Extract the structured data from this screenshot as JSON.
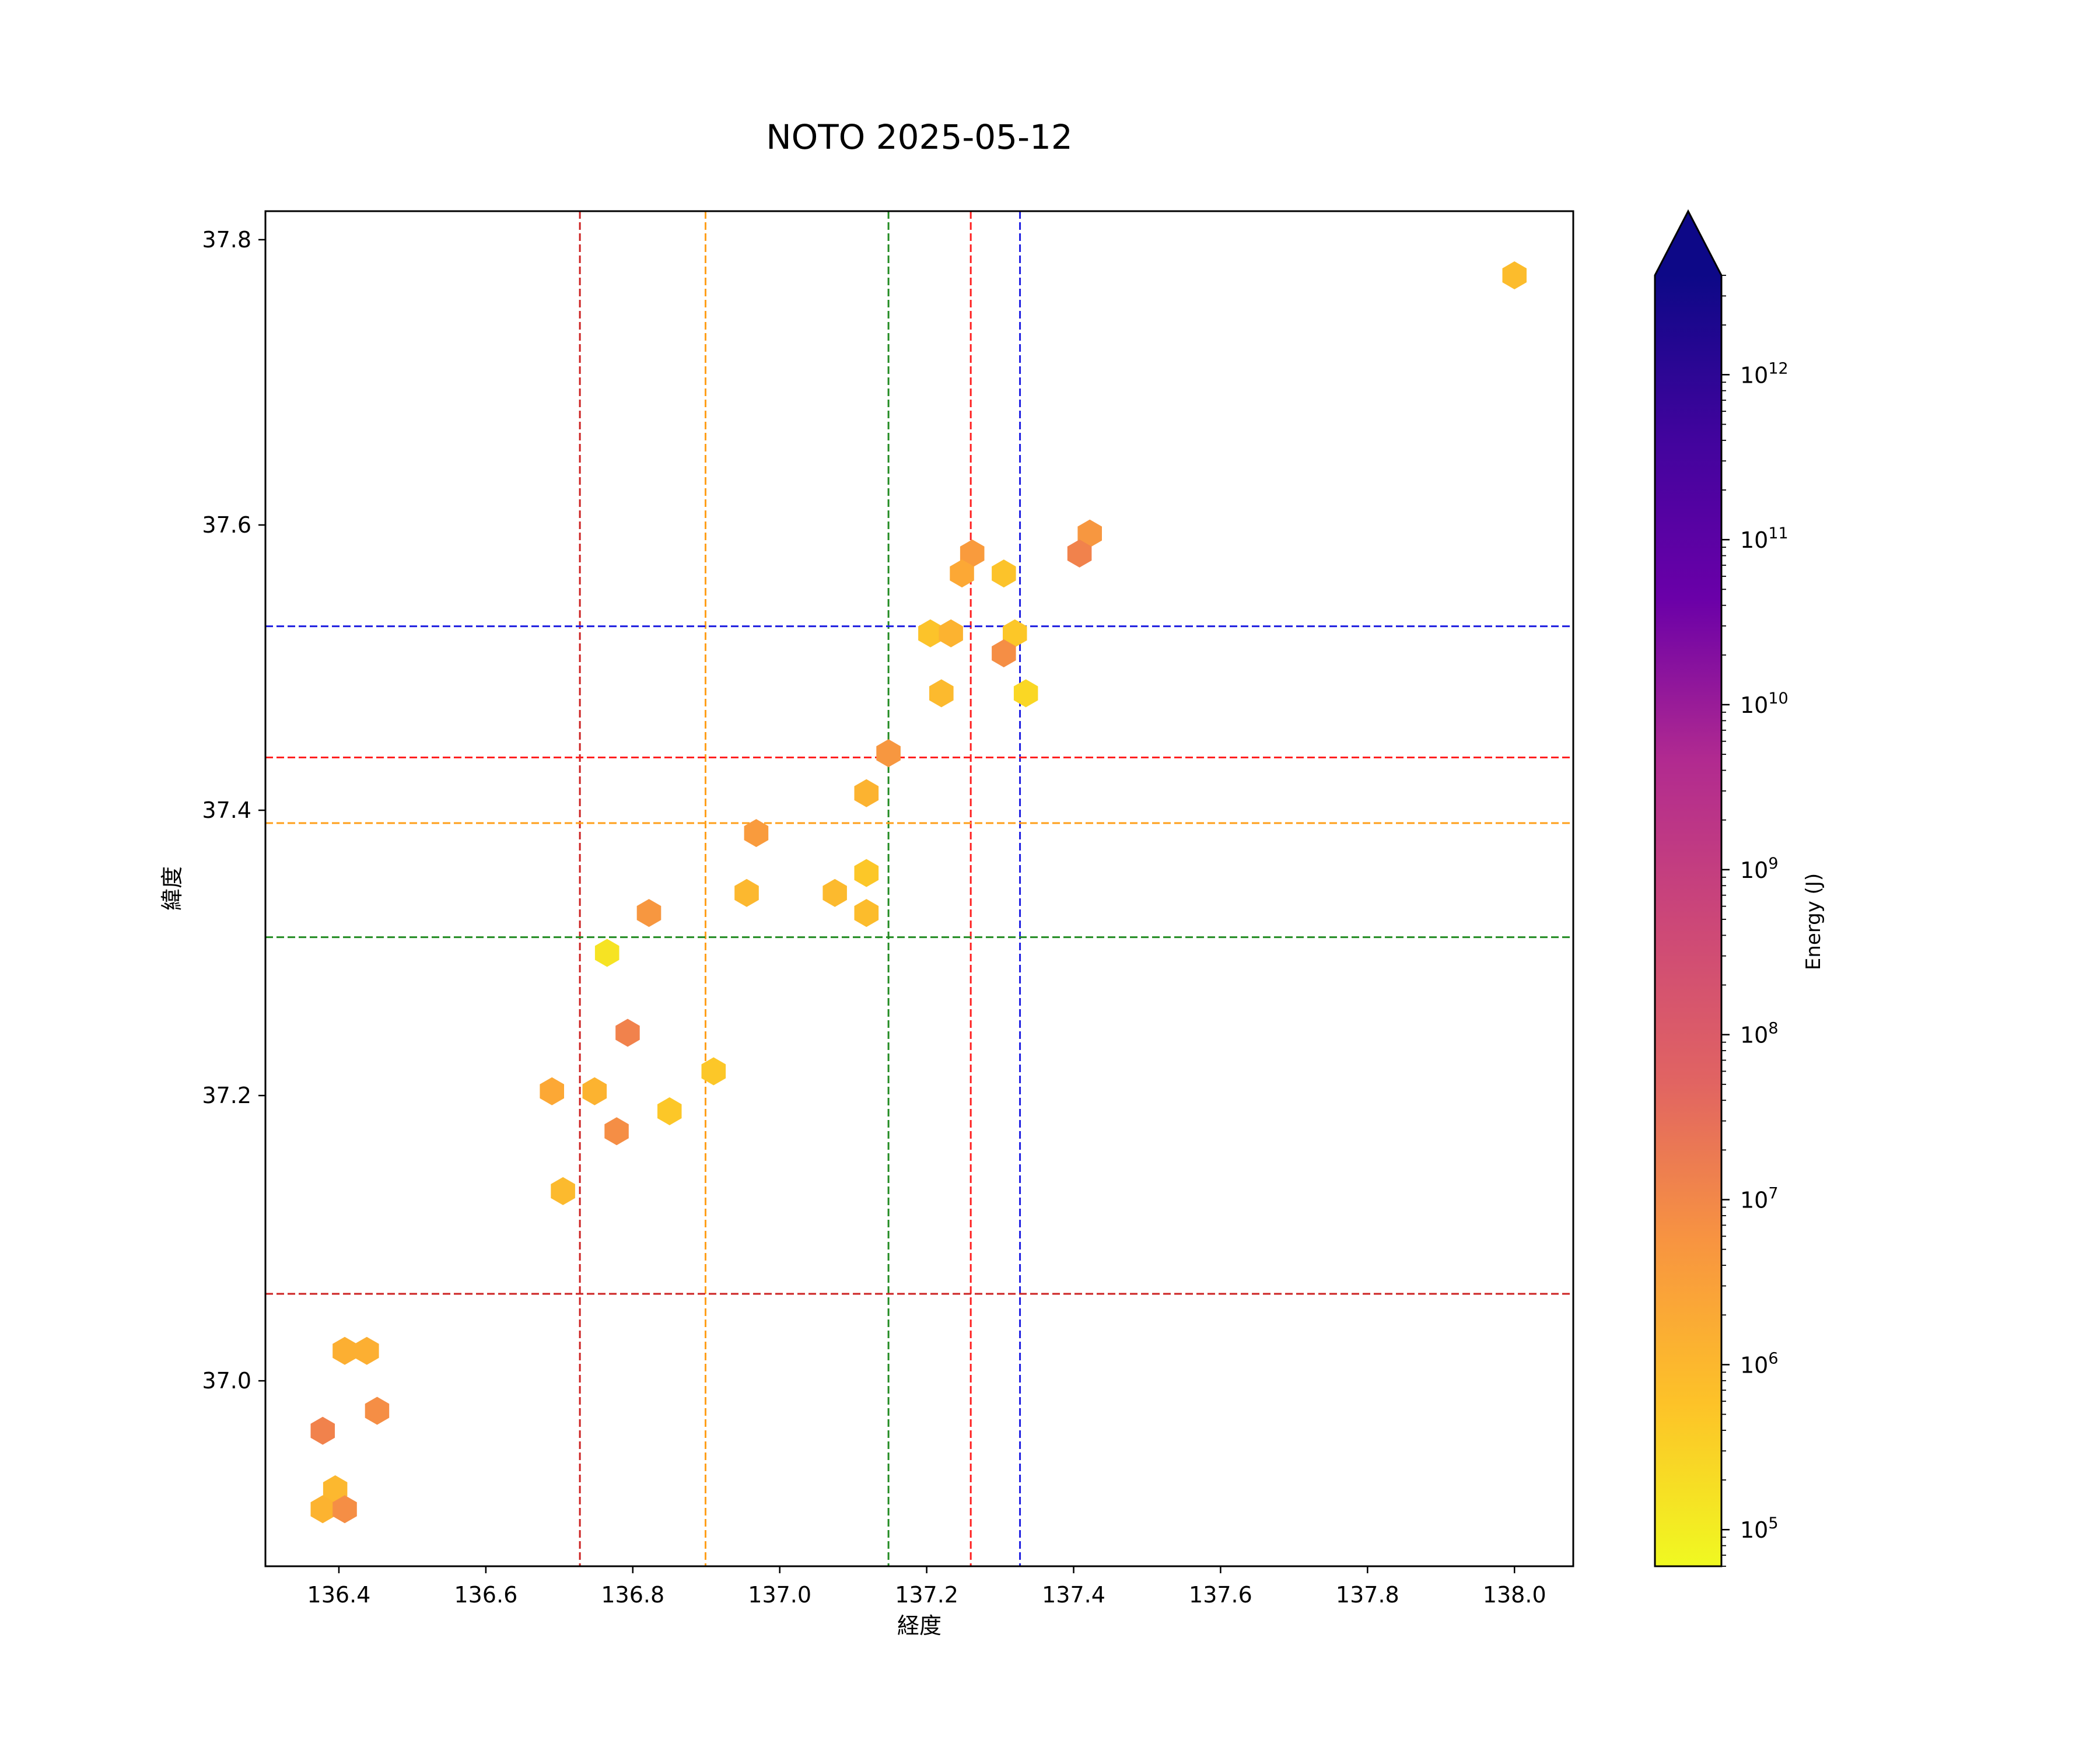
{
  "chart_data": {
    "type": "scatter",
    "title": "NOTO 2025-05-12",
    "xlabel": "経度",
    "ylabel": "緯度",
    "xlim": [
      136.3,
      138.08
    ],
    "ylim": [
      36.87,
      37.82
    ],
    "xticks": [
      136.4,
      136.6,
      136.8,
      137.0,
      137.2,
      137.4,
      137.6,
      137.8,
      138.0
    ],
    "xtick_labels": [
      "136.4",
      "136.6",
      "136.8",
      "137.0",
      "137.2",
      "137.4",
      "137.6",
      "137.8",
      "138.0"
    ],
    "yticks": [
      37.0,
      37.2,
      37.4,
      37.6,
      37.8
    ],
    "ytick_labels": [
      "37.0",
      "37.2",
      "37.4",
      "37.6",
      "37.8"
    ],
    "grid": false,
    "marker": "hexagon",
    "vlines": [
      {
        "x": 136.728,
        "color": "#cc2222"
      },
      {
        "x": 136.899,
        "color": "#ff9f1a"
      },
      {
        "x": 137.148,
        "color": "#228b22"
      },
      {
        "x": 137.26,
        "color": "#ff2020"
      },
      {
        "x": 137.327,
        "color": "#1f1fe0"
      }
    ],
    "hlines": [
      {
        "y": 37.529,
        "color": "#1f1fe0"
      },
      {
        "y": 37.437,
        "color": "#ff2020"
      },
      {
        "y": 37.391,
        "color": "#ff9f1a"
      },
      {
        "y": 37.311,
        "color": "#228b22"
      },
      {
        "y": 37.061,
        "color": "#cc2222"
      }
    ],
    "points": [
      {
        "x": 138.0,
        "y": 37.775,
        "energy": 800000
      },
      {
        "x": 137.422,
        "y": 37.594,
        "energy": 5000000
      },
      {
        "x": 137.408,
        "y": 37.58,
        "energy": 15000000
      },
      {
        "x": 137.262,
        "y": 37.58,
        "energy": 4000000
      },
      {
        "x": 137.248,
        "y": 37.566,
        "energy": 2000000
      },
      {
        "x": 137.305,
        "y": 37.566,
        "energy": 600000
      },
      {
        "x": 137.205,
        "y": 37.524,
        "energy": 600000
      },
      {
        "x": 137.233,
        "y": 37.524,
        "energy": 1200000
      },
      {
        "x": 137.32,
        "y": 37.524,
        "energy": 500000
      },
      {
        "x": 137.305,
        "y": 37.51,
        "energy": 8000000
      },
      {
        "x": 137.22,
        "y": 37.482,
        "energy": 900000
      },
      {
        "x": 137.335,
        "y": 37.482,
        "energy": 250000
      },
      {
        "x": 137.148,
        "y": 37.44,
        "energy": 5000000
      },
      {
        "x": 137.118,
        "y": 37.412,
        "energy": 1200000
      },
      {
        "x": 136.968,
        "y": 37.384,
        "energy": 4000000
      },
      {
        "x": 137.118,
        "y": 37.356,
        "energy": 500000
      },
      {
        "x": 136.955,
        "y": 37.342,
        "energy": 1000000
      },
      {
        "x": 137.075,
        "y": 37.342,
        "energy": 900000
      },
      {
        "x": 136.822,
        "y": 37.328,
        "energy": 5000000
      },
      {
        "x": 137.118,
        "y": 37.328,
        "energy": 800000
      },
      {
        "x": 136.765,
        "y": 37.3,
        "energy": 150000
      },
      {
        "x": 136.793,
        "y": 37.244,
        "energy": 15000000
      },
      {
        "x": 136.91,
        "y": 37.217,
        "energy": 500000
      },
      {
        "x": 136.69,
        "y": 37.203,
        "energy": 2000000
      },
      {
        "x": 136.748,
        "y": 37.203,
        "energy": 1200000
      },
      {
        "x": 136.85,
        "y": 37.189,
        "energy": 500000
      },
      {
        "x": 136.778,
        "y": 37.175,
        "energy": 8000000
      },
      {
        "x": 136.705,
        "y": 37.133,
        "energy": 900000
      },
      {
        "x": 136.408,
        "y": 37.021,
        "energy": 1500000
      },
      {
        "x": 136.438,
        "y": 37.021,
        "energy": 1500000
      },
      {
        "x": 136.452,
        "y": 36.979,
        "energy": 8000000
      },
      {
        "x": 136.378,
        "y": 36.965,
        "energy": 15000000
      },
      {
        "x": 136.395,
        "y": 36.924,
        "energy": 1000000
      },
      {
        "x": 136.378,
        "y": 36.91,
        "energy": 1200000
      },
      {
        "x": 136.408,
        "y": 36.91,
        "energy": 8000000
      }
    ],
    "colorbar": {
      "label": "Energy (J)",
      "scale": "log",
      "cmap": "plasma_r",
      "range": [
        60000,
        4000000000000
      ],
      "extend": "max",
      "ticks": [
        {
          "base": "10",
          "exp": "5"
        },
        {
          "base": "10",
          "exp": "6"
        },
        {
          "base": "10",
          "exp": "7"
        },
        {
          "base": "10",
          "exp": "8"
        },
        {
          "base": "10",
          "exp": "9"
        },
        {
          "base": "10",
          "exp": "10"
        },
        {
          "base": "10",
          "exp": "11"
        },
        {
          "base": "10",
          "exp": "12"
        }
      ]
    }
  }
}
